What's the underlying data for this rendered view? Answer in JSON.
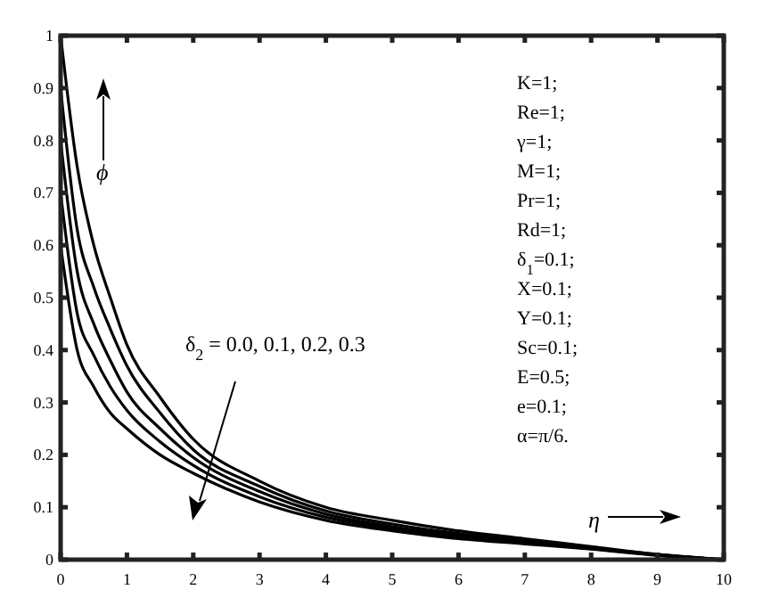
{
  "chart_data": {
    "type": "line",
    "x": [
      0,
      0.25,
      0.5,
      0.75,
      1,
      1.5,
      2,
      3,
      4,
      5,
      6,
      7,
      8,
      9,
      10
    ],
    "series": [
      {
        "color": "#000000",
        "values": [
          1,
          0.75,
          0.6,
          0.5,
          0.41,
          0.31,
          0.23,
          0.15,
          0.1,
          0.075,
          0.055,
          0.04,
          0.025,
          0.01,
          0
        ]
      },
      {
        "color": "#000000",
        "values": [
          0.9,
          0.63,
          0.52,
          0.44,
          0.37,
          0.28,
          0.21,
          0.14,
          0.093,
          0.068,
          0.05,
          0.036,
          0.023,
          0.01,
          0
        ]
      },
      {
        "color": "#000000",
        "values": [
          0.8,
          0.55,
          0.45,
          0.38,
          0.32,
          0.25,
          0.195,
          0.13,
          0.087,
          0.063,
          0.047,
          0.034,
          0.022,
          0.009,
          0
        ]
      },
      {
        "color": "#000000",
        "values": [
          0.7,
          0.47,
          0.39,
          0.33,
          0.285,
          0.225,
          0.18,
          0.12,
          0.081,
          0.059,
          0.043,
          0.032,
          0.021,
          0.009,
          0
        ]
      },
      {
        "color": "#000000",
        "values": [
          0.6,
          0.4,
          0.33,
          0.28,
          0.25,
          0.2,
          0.165,
          0.11,
          0.075,
          0.055,
          0.04,
          0.03,
          0.02,
          0.008,
          0
        ]
      }
    ],
    "xlim": [
      0,
      10
    ],
    "xticks": [
      0,
      1,
      2,
      3,
      4,
      5,
      6,
      7,
      8,
      9,
      10
    ],
    "ylim": [
      0,
      1
    ],
    "yticks": [
      0,
      0.1,
      0.2,
      0.3,
      0.4,
      0.5,
      0.6,
      0.7,
      0.8,
      0.9,
      1
    ],
    "grid": false,
    "marker": "none",
    "line_style": "solid",
    "annotations": [
      "ϕ",
      "η",
      "δ$_{2}$ = 0.0, 0.1, 0.2, 0.3",
      "K=1;\nRe=1;\nγ=1;\nM=1;\nPr=1;\nRd=1;\nδ$_{1}$=0.1;\nX=0.1;\nY=0.1;\nSc=0.1;\nE=0.5;\ne=0.1;\nα=π/6."
    ]
  }
}
